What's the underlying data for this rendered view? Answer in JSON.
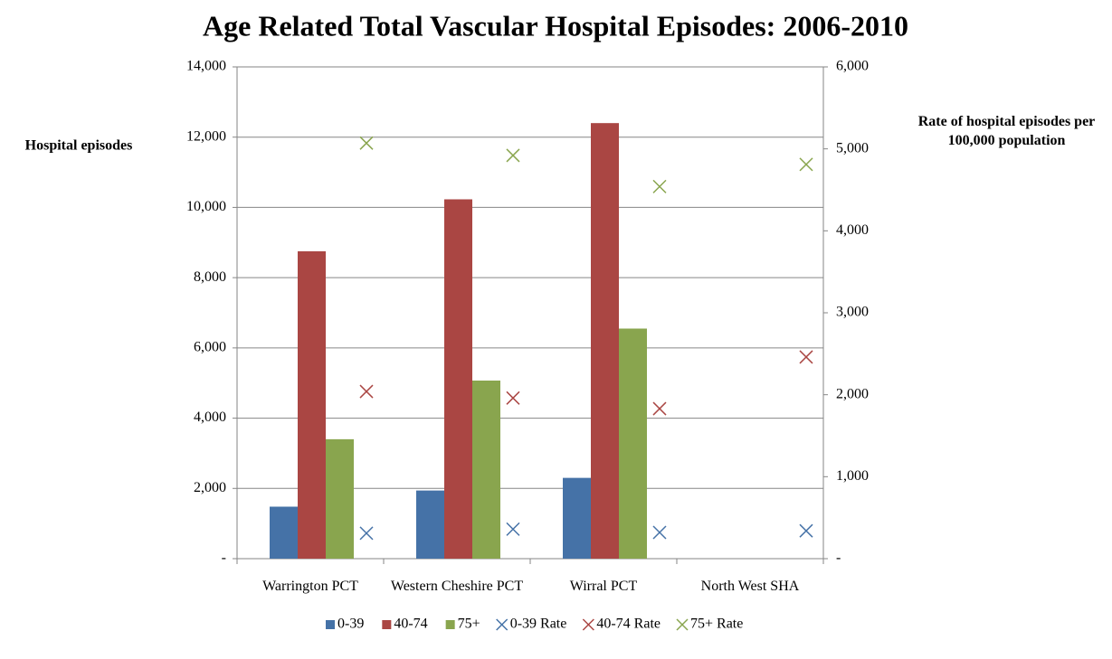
{
  "chart_data": {
    "type": "bar",
    "title": "Age Related Total Vascular Hospital Episodes: 2006-2010",
    "y_label": "Hospital episodes",
    "y2_label": "Rate of hospital episodes per 100,000 population",
    "categories": [
      "Warrington PCT",
      "Western Cheshire PCT",
      "Wirral PCT",
      "North West SHA"
    ],
    "ylim": [
      0,
      14000
    ],
    "yticks": [
      {
        "value": 0,
        "label": "-"
      },
      {
        "value": 2000,
        "label": "2,000"
      },
      {
        "value": 4000,
        "label": "4,000"
      },
      {
        "value": 6000,
        "label": "6,000"
      },
      {
        "value": 8000,
        "label": "8,000"
      },
      {
        "value": 10000,
        "label": "10,000"
      },
      {
        "value": 12000,
        "label": "12,000"
      },
      {
        "value": 14000,
        "label": "14,000"
      }
    ],
    "y2lim": [
      0,
      6000
    ],
    "y2ticks": [
      {
        "value": 0,
        "label": "-"
      },
      {
        "value": 1000,
        "label": "1,000"
      },
      {
        "value": 2000,
        "label": "2,000"
      },
      {
        "value": 3000,
        "label": "3,000"
      },
      {
        "value": 4000,
        "label": "4,000"
      },
      {
        "value": 5000,
        "label": "5,000"
      },
      {
        "value": 6000,
        "label": "6,000"
      }
    ],
    "grid": true,
    "legend": "bottom",
    "series": [
      {
        "name": "0-39",
        "color": "#4572a7",
        "values": [
          1480,
          1940,
          2300,
          null
        ]
      },
      {
        "name": "40-74",
        "color": "#aa4643",
        "values": [
          8750,
          10230,
          12400,
          null
        ]
      },
      {
        "name": "75+",
        "color": "#89a54e",
        "values": [
          3400,
          5070,
          6550,
          null
        ]
      },
      {
        "name": "0-39 Rate",
        "color": "#4572a7",
        "type": "scatter",
        "axis": "y2",
        "values": [
          310,
          360,
          320,
          340
        ]
      },
      {
        "name": "40-74 Rate",
        "color": "#aa4643",
        "type": "scatter",
        "axis": "y2",
        "values": [
          2040,
          1960,
          1830,
          2460
        ]
      },
      {
        "name": "75+ Rate",
        "color": "#89a54e",
        "type": "scatter",
        "axis": "y2",
        "values": [
          5070,
          4920,
          4540,
          4810
        ]
      }
    ]
  }
}
